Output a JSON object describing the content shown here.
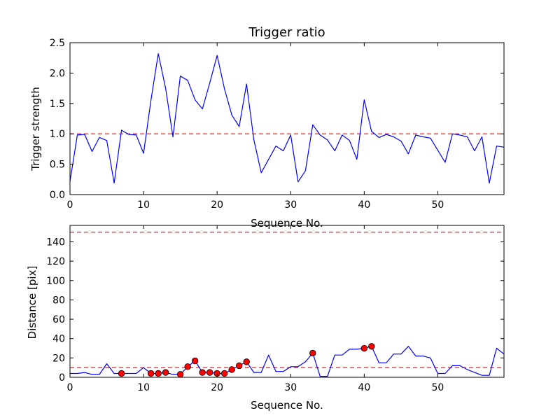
{
  "chart_data": [
    {
      "type": "line",
      "title": "Trigger ratio",
      "xlabel": "Sequence No.",
      "ylabel": "Trigger strength",
      "xlim": [
        0,
        59
      ],
      "ylim": [
        0,
        2.5
      ],
      "xticks": [
        0,
        10,
        20,
        30,
        40,
        50
      ],
      "yticks": [
        0.0,
        0.5,
        1.0,
        1.5,
        2.0,
        2.5
      ],
      "xtick_labels": [
        "0",
        "10",
        "20",
        "30",
        "40",
        "50"
      ],
      "ytick_labels": [
        "0.0",
        "0.5",
        "1.0",
        "1.5",
        "2.0",
        "2.5"
      ],
      "grid": false,
      "series": [
        {
          "color": "#0000ff",
          "x": [
            0,
            1,
            2,
            3,
            4,
            5,
            6,
            7,
            8,
            9,
            10,
            11,
            12,
            13,
            14,
            15,
            16,
            17,
            18,
            19,
            20,
            21,
            22,
            23,
            24,
            25,
            26,
            27,
            28,
            29,
            30,
            31,
            32,
            33,
            34,
            35,
            36,
            37,
            38,
            39,
            40,
            41,
            42,
            43,
            44,
            45,
            46,
            47,
            48,
            49,
            50,
            51,
            52,
            53,
            54,
            55,
            56,
            57,
            58,
            59
          ],
          "values": [
            0.22,
            0.98,
            0.99,
            0.71,
            0.94,
            0.89,
            0.19,
            1.06,
            0.99,
            0.98,
            0.68,
            1.55,
            2.32,
            1.75,
            0.95,
            1.95,
            1.88,
            1.56,
            1.41,
            1.84,
            2.29,
            1.74,
            1.31,
            1.12,
            1.82,
            0.9,
            0.36,
            0.58,
            0.8,
            0.72,
            0.98,
            0.21,
            0.39,
            1.15,
            0.98,
            0.9,
            0.72,
            0.98,
            0.89,
            0.58,
            1.56,
            1.04,
            0.94,
            0.99,
            0.95,
            0.88,
            0.67,
            0.98,
            0.95,
            0.93,
            0.73,
            0.53,
            1.0,
            0.98,
            0.95,
            0.72,
            0.95,
            0.19,
            0.8,
            0.78
          ]
        }
      ],
      "hlines": [
        {
          "y": 1.0,
          "color": "#ff0000",
          "style": "dashed"
        }
      ]
    },
    {
      "type": "line",
      "title": "",
      "xlabel": "Sequence No.",
      "ylabel": "Distance [pix]",
      "xlim": [
        0,
        59
      ],
      "ylim": [
        0,
        157
      ],
      "xticks": [
        0,
        10,
        20,
        30,
        40,
        50
      ],
      "yticks": [
        0,
        20,
        40,
        60,
        80,
        100,
        120,
        140
      ],
      "xtick_labels": [
        "0",
        "10",
        "20",
        "30",
        "40",
        "50"
      ],
      "ytick_labels": [
        "0",
        "20",
        "40",
        "60",
        "80",
        "100",
        "120",
        "140"
      ],
      "grid": false,
      "series": [
        {
          "color": "#0000ff",
          "x": [
            0,
            1,
            2,
            3,
            4,
            5,
            6,
            7,
            8,
            9,
            10,
            11,
            12,
            13,
            14,
            15,
            16,
            17,
            18,
            19,
            20,
            21,
            22,
            23,
            24,
            25,
            26,
            27,
            28,
            29,
            30,
            31,
            32,
            33,
            34,
            35,
            36,
            37,
            38,
            39,
            40,
            41,
            42,
            43,
            44,
            45,
            46,
            47,
            48,
            49,
            50,
            51,
            52,
            53,
            54,
            55,
            56,
            57,
            58,
            59
          ],
          "values": [
            4,
            4,
            5,
            3,
            3,
            14,
            4,
            4,
            4,
            4,
            10,
            4,
            4,
            5,
            3,
            3,
            11,
            17,
            5,
            5,
            4,
            4,
            8,
            12,
            16,
            5,
            5,
            23,
            6,
            6,
            11,
            11,
            16,
            25,
            1,
            1,
            23,
            23,
            29,
            29,
            30,
            32,
            15,
            15,
            24,
            24,
            32,
            22,
            22,
            20,
            4,
            4,
            12,
            12,
            8,
            5,
            2,
            2,
            30,
            24
          ]
        },
        {
          "type": "markers",
          "color": "#ff0000",
          "x": [
            7,
            11,
            12,
            13,
            15,
            16,
            17,
            18,
            19,
            20,
            21,
            22,
            23,
            24,
            33,
            40,
            41
          ],
          "values": [
            4,
            4,
            4,
            5,
            3,
            11,
            17,
            5,
            5,
            4,
            4,
            8,
            12,
            16,
            25,
            30,
            32
          ]
        }
      ],
      "hlines": [
        {
          "y": 150,
          "color": "#ff0000",
          "style": "dashed"
        },
        {
          "y": 10,
          "color": "#ff0000",
          "style": "dashed"
        }
      ]
    }
  ]
}
